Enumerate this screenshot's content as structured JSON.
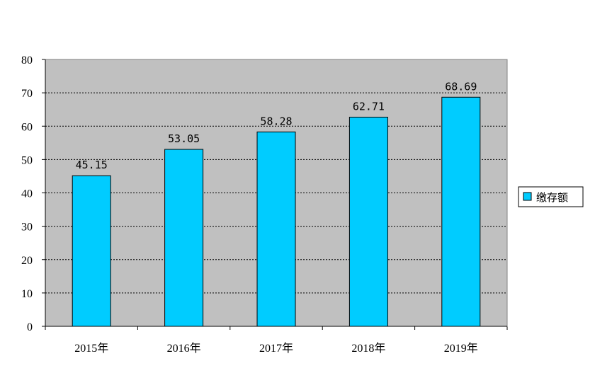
{
  "chart_data": {
    "type": "bar",
    "categories": [
      "2015年",
      "2016年",
      "2017年",
      "2018年",
      "2019年"
    ],
    "series": [
      {
        "name": "缴存额",
        "values": [
          45.15,
          53.05,
          58.28,
          62.71,
          68.69
        ]
      }
    ],
    "data_labels": [
      "45.15",
      "53.05",
      "58.28",
      "62.71",
      "68.69"
    ],
    "yticks": [
      "0",
      "10",
      "20",
      "30",
      "40",
      "50",
      "60",
      "70",
      "80"
    ],
    "ylim": [
      0,
      80
    ],
    "grid": true,
    "legend_position": "right",
    "colors": {
      "bar": "#00CCFF",
      "plot_bg": "#C0C0C0",
      "grid": "#000000"
    }
  }
}
